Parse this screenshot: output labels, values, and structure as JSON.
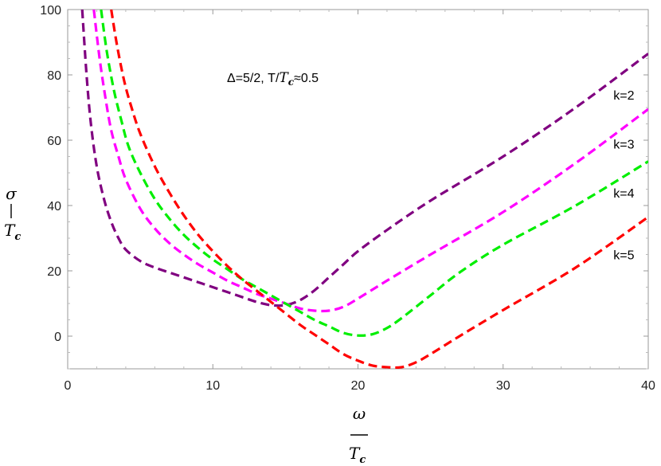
{
  "chart_data": {
    "type": "line",
    "title": "",
    "annotation": {
      "prefix": "Δ=5/2,  T/",
      "var": "T",
      "sub": "c",
      "suffix": "≈0.5"
    },
    "xlabel": {
      "var": "ω",
      "den_var": "T",
      "den_sub": "c"
    },
    "ylabel": {
      "var": "σ",
      "den_var": "T",
      "den_sub": "c"
    },
    "xlim": [
      0,
      40
    ],
    "ylim": [
      -10,
      100
    ],
    "xticks": [
      0,
      10,
      20,
      30,
      40
    ],
    "yticks": [
      0,
      20,
      40,
      60,
      80,
      100
    ],
    "grid": false,
    "line_style": "dashed",
    "series": [
      {
        "name": "k=2",
        "color": "#800080",
        "x": [
          1.0,
          1.3,
          1.6,
          2.0,
          2.5,
          3.0,
          3.5,
          4.0,
          5.0,
          6.0,
          7.0,
          8.0,
          9.0,
          10.0,
          11.0,
          12.0,
          13.0,
          14.0,
          15.0,
          16.0,
          17.0,
          18.0,
          19.0,
          20.0,
          22.0,
          25.0,
          30.0,
          35.0,
          40.0
        ],
        "y": [
          100,
          80,
          65,
          52,
          42,
          35,
          30,
          26.5,
          23,
          21,
          19.5,
          18,
          16.5,
          15,
          13.5,
          12,
          10.5,
          9.5,
          9.5,
          11,
          14,
          18,
          22,
          26,
          32.5,
          41.5,
          55,
          70,
          86.5
        ]
      },
      {
        "name": "k=3",
        "color": "#ff00ff",
        "x": [
          1.8,
          2.2,
          2.6,
          3.0,
          3.5,
          4.0,
          5.0,
          6.0,
          7.0,
          8.0,
          9.0,
          10.0,
          11.0,
          12.0,
          13.0,
          14.0,
          15.0,
          16.0,
          17.0,
          18.0,
          19.0,
          20.0,
          22.0,
          25.0,
          30.0,
          35.0,
          40.0
        ],
        "y": [
          100,
          85,
          73,
          63,
          55,
          48,
          39,
          33,
          28.5,
          25,
          22,
          19.5,
          17,
          15,
          13,
          11.5,
          10,
          8.5,
          7.8,
          7.8,
          9,
          11.5,
          17,
          25,
          38,
          53,
          69.5
        ]
      },
      {
        "name": "k=4",
        "color": "#00ee00",
        "x": [
          2.3,
          2.7,
          3.2,
          3.7,
          4.2,
          5.0,
          6.0,
          7.0,
          8.0,
          9.0,
          10.0,
          11.0,
          12.0,
          13.0,
          14.0,
          15.0,
          16.0,
          17.0,
          18.0,
          19.0,
          20.0,
          21.0,
          22.0,
          23.0,
          25.0,
          27.0,
          30.0,
          35.0,
          40.0
        ],
        "y": [
          100,
          87,
          75,
          66,
          58,
          50,
          42,
          36,
          31,
          27,
          23.5,
          20.5,
          17.5,
          15,
          12.5,
          10,
          7.5,
          5,
          3,
          1,
          0.2,
          0.6,
          2.5,
          5.5,
          12.5,
          19.5,
          28,
          40,
          53.5
        ]
      },
      {
        "name": "k=5",
        "color": "#ff0000",
        "x": [
          3.0,
          3.4,
          3.9,
          4.4,
          5.0,
          6.0,
          7.0,
          8.0,
          9.0,
          10.0,
          11.0,
          12.0,
          13.0,
          14.0,
          15.0,
          16.0,
          17.0,
          18.0,
          19.0,
          20.0,
          21.0,
          22.0,
          23.0,
          24.0,
          25.0,
          27.0,
          30.0,
          35.0,
          40.0
        ],
        "y": [
          100,
          89,
          78,
          70,
          62,
          52,
          44,
          37,
          31,
          26,
          21.5,
          17.5,
          14,
          10.5,
          7,
          3.5,
          0.5,
          -2.5,
          -5.5,
          -7.5,
          -9,
          -9.5,
          -9.5,
          -8,
          -5.5,
          0,
          8,
          21,
          36.5
        ]
      }
    ],
    "series_labels": [
      {
        "text": "k=2",
        "x": 37.6,
        "y": 72.5
      },
      {
        "text": "k=3",
        "x": 37.6,
        "y": 57.5
      },
      {
        "text": "k=4",
        "x": 37.6,
        "y": 42.5
      },
      {
        "text": "k=5",
        "x": 37.6,
        "y": 23.5
      }
    ]
  }
}
